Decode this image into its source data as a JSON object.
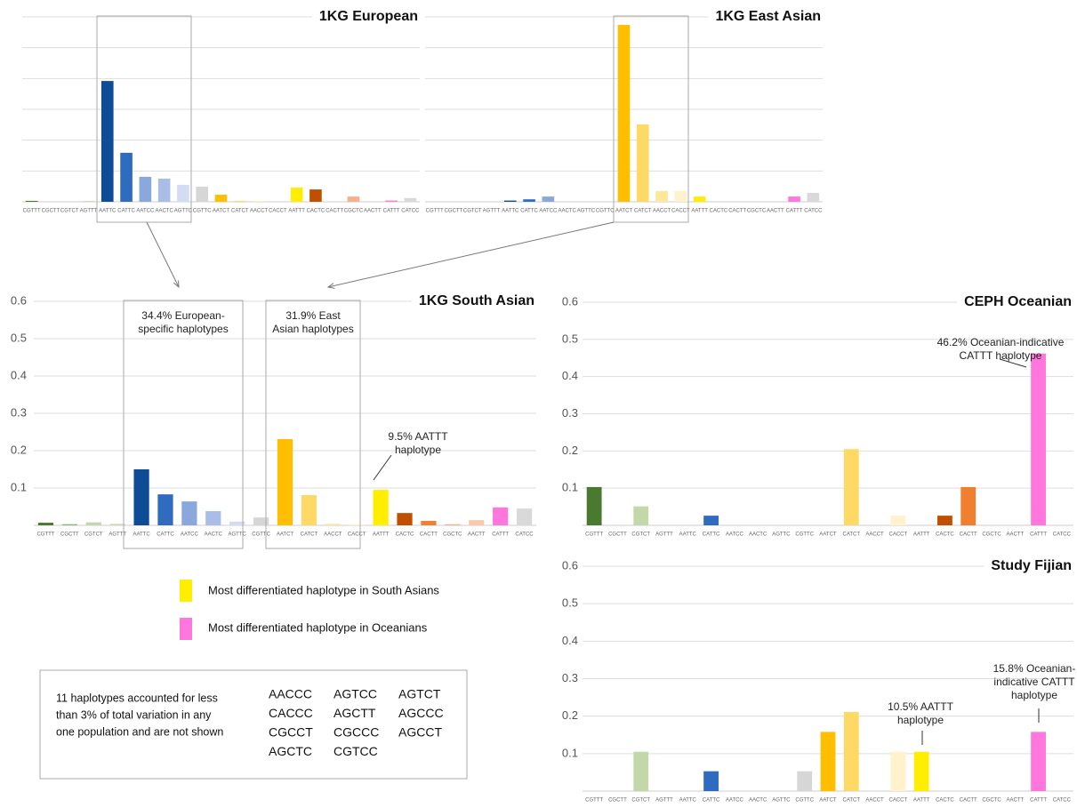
{
  "chart_data": [
    {
      "type": "bar",
      "title": "1KG European",
      "categories": [
        "CGTTT",
        "CGCTT",
        "CGTCT",
        "AGTTT",
        "AATTC",
        "CATTC",
        "AATCC",
        "AACTC",
        "AGTTC",
        "CGTTC",
        "AATCT",
        "CATCT",
        "AACCT",
        "CACCT",
        "AATTT",
        "CACTC",
        "CACTT",
        "CGCTC",
        "AACTT",
        "CATTT",
        "CATCC"
      ],
      "values": [
        0.003,
        0,
        0,
        0.003,
        0.392,
        0.159,
        0.081,
        0.075,
        0.055,
        0.049,
        0.023,
        0.003,
        0.002,
        0,
        0.046,
        0.04,
        0,
        0.017,
        0,
        0.004,
        0.012
      ],
      "colors": [
        "#4a7a2f",
        "#8db56a",
        "#c3d8a8",
        "#d6d6bf",
        "#0f4c96",
        "#2f6cc0",
        "#8aa8dc",
        "#a9bde6",
        "#d2dcf2",
        "#d6d6d6",
        "#ffbf00",
        "#ffd966",
        "#ffe699",
        "#fff2cc",
        "#ffee00",
        "#c05000",
        "#f08030",
        "#f6b08c",
        "#fcc8a8",
        "#ff77dd",
        "#d9d9d9"
      ],
      "ylim": [
        0,
        0.6
      ],
      "yticks": [
        0.1,
        0.2,
        0.3,
        0.4,
        0.5,
        0.6
      ],
      "grid": true,
      "tick_labels": false
    },
    {
      "type": "bar",
      "title": "1KG East Asian",
      "categories": [
        "CGTTT",
        "CGCTT",
        "CGTCT",
        "AGTTT",
        "AATTC",
        "CATTC",
        "AATCC",
        "AACTC",
        "AGTTC",
        "CGTTC",
        "AATCT",
        "CATCT",
        "AACCT",
        "CACCT",
        "AATTT",
        "CACTC",
        "CACTT",
        "CGCTC",
        "AACTT",
        "CATTT",
        "CATCC"
      ],
      "values": [
        0,
        0,
        0,
        0,
        0.004,
        0.008,
        0.017,
        0,
        0,
        0,
        0.574,
        0.251,
        0.035,
        0.035,
        0.017,
        0,
        0,
        0,
        0,
        0.017,
        0.029
      ],
      "colors": [
        "#4a7a2f",
        "#8db56a",
        "#c3d8a8",
        "#d6d6bf",
        "#0f4c96",
        "#2f6cc0",
        "#8aa8dc",
        "#a9bde6",
        "#d2dcf2",
        "#d6d6d6",
        "#ffbf00",
        "#ffd966",
        "#ffe699",
        "#fff2cc",
        "#ffee00",
        "#c05000",
        "#f08030",
        "#f6b08c",
        "#fcc8a8",
        "#ff77dd",
        "#d9d9d9"
      ],
      "ylim": [
        0,
        0.6
      ],
      "yticks": [
        0.1,
        0.2,
        0.3,
        0.4,
        0.5,
        0.6
      ],
      "grid": true,
      "tick_labels": false
    },
    {
      "type": "bar",
      "title": "1KG South Asian",
      "categories": [
        "CGTTT",
        "CGCTT",
        "CGTCT",
        "AGTTT",
        "AATTC",
        "CATTC",
        "AATCC",
        "AACTC",
        "AGTTC",
        "CGTTC",
        "AATCT",
        "CATCT",
        "AACCT",
        "CACCT",
        "AATTT",
        "CACTC",
        "CACTT",
        "CGCTC",
        "AACTT",
        "CATTT",
        "CATCC"
      ],
      "values": [
        0.007,
        0.003,
        0.008,
        0.004,
        0.15,
        0.083,
        0.064,
        0.038,
        0.01,
        0.021,
        0.231,
        0.081,
        0.004,
        0.003,
        0.095,
        0.033,
        0.012,
        0.003,
        0.014,
        0.048,
        0.045
      ],
      "colors": [
        "#4a7a2f",
        "#8db56a",
        "#c3d8a8",
        "#d6d6bf",
        "#0f4c96",
        "#2f6cc0",
        "#8aa8dc",
        "#a9bde6",
        "#d2dcf2",
        "#d6d6d6",
        "#ffbf00",
        "#ffd966",
        "#ffe699",
        "#fff2cc",
        "#ffee00",
        "#c05000",
        "#f08030",
        "#f6b08c",
        "#fcc8a8",
        "#ff77dd",
        "#d9d9d9"
      ],
      "ylim": [
        0,
        0.6
      ],
      "yticks": [
        0.1,
        0.2,
        0.3,
        0.4,
        0.5,
        0.6
      ],
      "grid": true,
      "tick_labels": true,
      "annotations": [
        {
          "lines": [
            "34.4% European-",
            "specific haplotypes"
          ]
        },
        {
          "lines": [
            "31.9% East",
            "Asian haplotypes"
          ]
        },
        {
          "lines": [
            "9.5% AATTT",
            "haplotype"
          ]
        }
      ]
    },
    {
      "type": "bar",
      "title": "CEPH Oceanian",
      "categories": [
        "CGTTT",
        "CGCTT",
        "CGTCT",
        "AGTTT",
        "AATTC",
        "CATTC",
        "AATCC",
        "AACTC",
        "AGTTC",
        "CGTTC",
        "AATCT",
        "CATCT",
        "AACCT",
        "CACCT",
        "AATTT",
        "CACTC",
        "CACTT",
        "CGCTC",
        "AACTT",
        "CATTT",
        "CATCC"
      ],
      "values": [
        0.103,
        0,
        0.051,
        0,
        0,
        0.026,
        0,
        0,
        0,
        0,
        0,
        0.205,
        0,
        0.026,
        0,
        0.026,
        0.103,
        0,
        0,
        0.462,
        0
      ],
      "colors": [
        "#4a7a2f",
        "#8db56a",
        "#c3d8a8",
        "#d6d6bf",
        "#0f4c96",
        "#2f6cc0",
        "#8aa8dc",
        "#a9bde6",
        "#d2dcf2",
        "#d6d6d6",
        "#ffbf00",
        "#ffd966",
        "#ffe699",
        "#fff2cc",
        "#ffee00",
        "#c05000",
        "#f08030",
        "#f6b08c",
        "#fcc8a8",
        "#ff77dd",
        "#d9d9d9"
      ],
      "ylim": [
        0,
        0.6
      ],
      "yticks": [
        0.1,
        0.2,
        0.3,
        0.4,
        0.5,
        0.6
      ],
      "grid": true,
      "tick_labels": true,
      "annotations": [
        {
          "lines": [
            "46.2% Oceanian-indicative",
            "CATTT haplotype"
          ]
        }
      ]
    },
    {
      "type": "bar",
      "title": "Study Fijian",
      "categories": [
        "CGTTT",
        "CGCTT",
        "CGTCT",
        "AGTTT",
        "AATTC",
        "CATTC",
        "AATCC",
        "AACTC",
        "AGTTC",
        "CGTTC",
        "AATCT",
        "CATCT",
        "AACCT",
        "CACCT",
        "AATTT",
        "CACTC",
        "CACTT",
        "CGCTC",
        "AACTT",
        "CATTT",
        "CATCC"
      ],
      "values": [
        0,
        0,
        0.105,
        0,
        0,
        0.053,
        0,
        0,
        0,
        0.053,
        0.158,
        0.211,
        0,
        0.105,
        0.105,
        0,
        0,
        0,
        0,
        0.158,
        0
      ],
      "colors": [
        "#4a7a2f",
        "#8db56a",
        "#c3d8a8",
        "#d6d6bf",
        "#0f4c96",
        "#2f6cc0",
        "#8aa8dc",
        "#a9bde6",
        "#d2dcf2",
        "#d6d6d6",
        "#ffbf00",
        "#ffd966",
        "#ffe699",
        "#fff2cc",
        "#ffee00",
        "#c05000",
        "#f08030",
        "#f6b08c",
        "#fcc8a8",
        "#ff77dd",
        "#d9d9d9"
      ],
      "ylim": [
        0,
        0.6
      ],
      "yticks": [
        0.1,
        0.2,
        0.3,
        0.4,
        0.5,
        0.6
      ],
      "grid": true,
      "tick_labels": true,
      "annotations": [
        {
          "lines": [
            "10.5% AATTT",
            "haplotype"
          ]
        },
        {
          "lines": [
            "15.8% Oceanian-",
            "indicative CATTT",
            "haplotype"
          ]
        }
      ]
    }
  ],
  "legend": [
    {
      "color": "#ffee00",
      "label": "Most differentiated haplotype in South Asians"
    },
    {
      "color": "#ff77dd",
      "label": "Most differentiated haplotype in Oceanians"
    }
  ],
  "note": {
    "lines": [
      "11 haplotypes accounted for less",
      "than 3% of total variation in any",
      "one population and are not shown"
    ],
    "haplotypes": [
      [
        "AACCC",
        "AGTCC",
        "AGTCT"
      ],
      [
        "CACCC",
        "AGCTT",
        "AGCCC"
      ],
      [
        "CGCCT",
        "CGCCC",
        "AGCCT"
      ],
      [
        "AGCTC",
        "CGTCC"
      ]
    ]
  }
}
